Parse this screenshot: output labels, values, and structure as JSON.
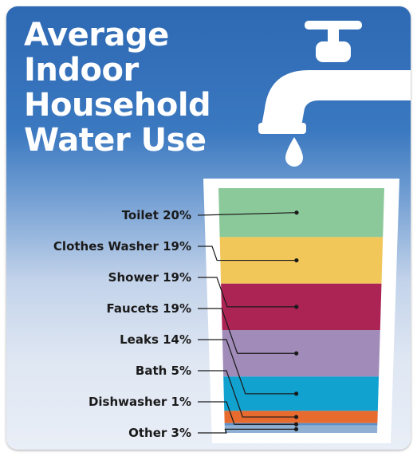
{
  "title_lines": [
    "Average",
    "Indoor",
    "Household",
    "Water Use"
  ],
  "chart_data": {
    "type": "bar",
    "title": "Average Indoor Household Water Use",
    "unit": "%",
    "categories": [
      "Toilet",
      "Clothes Washer",
      "Shower",
      "Faucets",
      "Leaks",
      "Bath",
      "Dishwasher",
      "Other"
    ],
    "values": [
      20,
      19,
      19,
      19,
      14,
      5,
      1,
      3
    ],
    "labels": [
      "Toilet 20%",
      "Clothes Washer 19%",
      "Shower 19%",
      "Faucets 19%",
      "Leaks 14%",
      "Bath 5%",
      "Dishwasher 1%",
      "Other 3%"
    ],
    "colors": [
      "#8cc99a",
      "#f1c75a",
      "#ab2453",
      "#a18bb9",
      "#12a2cf",
      "#e76b2f",
      "#5b8fc9",
      "#8fb0d2"
    ]
  }
}
